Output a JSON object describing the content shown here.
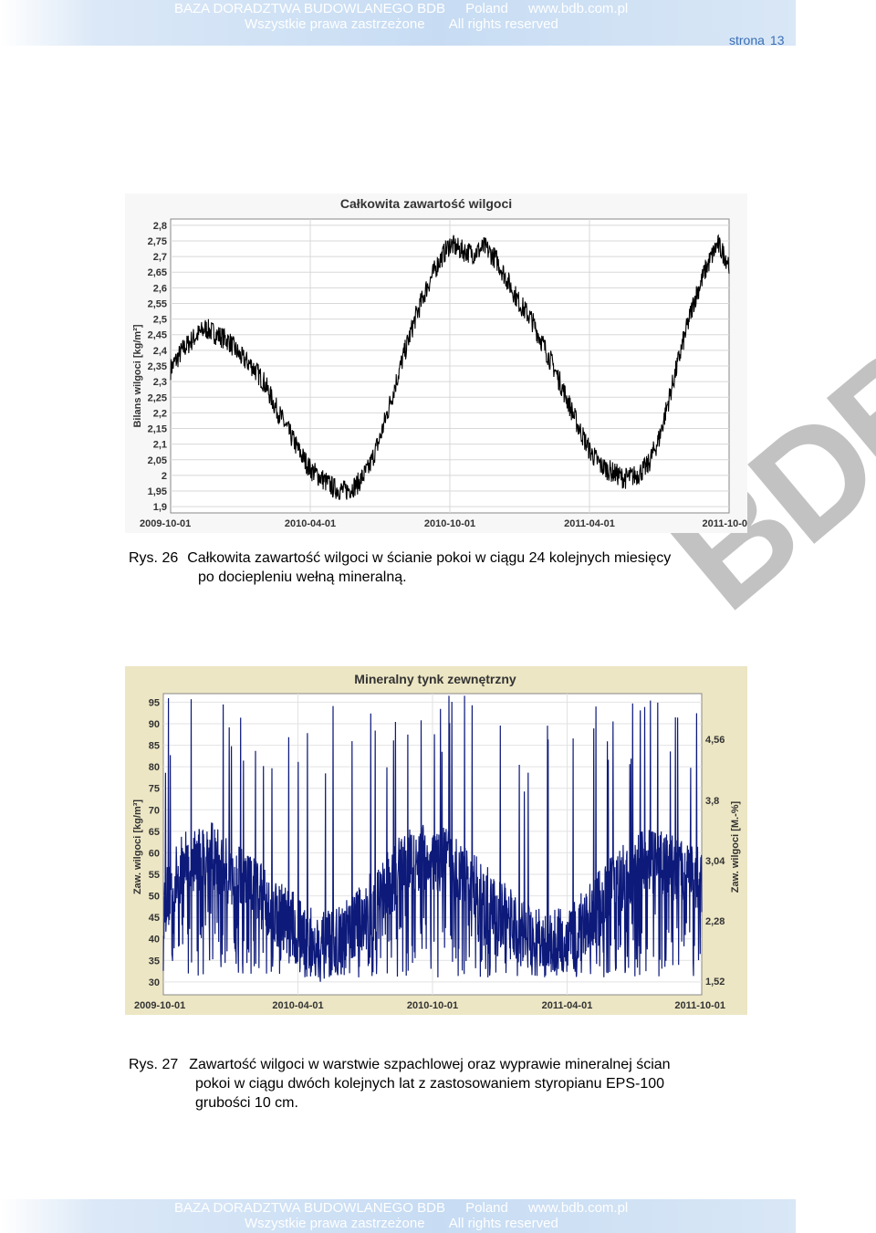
{
  "header": {
    "line1": [
      "BAZA DORADZTWA BUDOWLANEGO BDB",
      "Poland",
      "www.bdb.com.pl"
    ],
    "line2": [
      "Wszystkie prawa zastrzeżone",
      "All rights reserved"
    ],
    "page_label": "strona",
    "page_number": "13"
  },
  "footer": {
    "line1": [
      "BAZA DORADZTWA BUDOWLANEGO BDB",
      "Poland",
      "www.bdb.com.pl"
    ],
    "line2": [
      "Wszystkie prawa zastrzeżone",
      "All rights reserved"
    ]
  },
  "watermark": "BDB",
  "captions": [
    {
      "number": "Rys. 26",
      "line1": "Całkowita zawartość wilgoci w ścianie pokoi w ciągu 24 kolejnych miesięcy",
      "line2": "po dociepleniu wełną mineralną."
    },
    {
      "number": "Rys. 27",
      "line1": "Zawartość wilgoci w warstwie szpachlowej oraz wyprawie mineralnej ścian",
      "line2": "pokoi w ciągu dwóch kolejnych lat z zastosowaniem styropianu EPS-100",
      "line3": "grubości 10 cm."
    }
  ],
  "chart_data": [
    {
      "type": "line",
      "title": "Całkowita zawartość wilgoci",
      "ylabel": "Bilans wilgoci [kg/m²]",
      "xlabel": "",
      "yticks": [
        "2,8",
        "2,75",
        "2,7",
        "2,65",
        "2,6",
        "2,55",
        "2,5",
        "2,45",
        "2,4",
        "2,35",
        "2,3",
        "2,25",
        "2,2",
        "2,15",
        "2,1",
        "2,05",
        "2",
        "1,95",
        "1,9"
      ],
      "xticks": [
        "2009-10-01",
        "2010-04-01",
        "2010-10-01",
        "2011-04-01",
        "2011-10-0"
      ],
      "ylim": [
        1.88,
        2.82
      ],
      "grid": true,
      "color": "#000000",
      "x_months": [
        0,
        0.5,
        1,
        1.5,
        2,
        2.5,
        3,
        3.5,
        4,
        4.5,
        5,
        5.5,
        6,
        6.5,
        7,
        7.5,
        8,
        8.5,
        9,
        9.5,
        10,
        10.5,
        11,
        11.5,
        12,
        12.5,
        13,
        13.5,
        14,
        14.5,
        15,
        15.5,
        16,
        16.5,
        17,
        17.5,
        18,
        18.5,
        19,
        19.5,
        20,
        20.5,
        21,
        21.5,
        22,
        22.5,
        23,
        23.5,
        24
      ],
      "values": [
        2.34,
        2.4,
        2.44,
        2.47,
        2.45,
        2.43,
        2.38,
        2.35,
        2.3,
        2.22,
        2.15,
        2.08,
        2.02,
        1.99,
        1.96,
        1.95,
        1.97,
        2.02,
        2.12,
        2.25,
        2.38,
        2.5,
        2.6,
        2.68,
        2.74,
        2.72,
        2.71,
        2.73,
        2.69,
        2.62,
        2.55,
        2.5,
        2.42,
        2.34,
        2.25,
        2.16,
        2.08,
        2.03,
        2.01,
        1.99,
        2.0,
        2.03,
        2.12,
        2.27,
        2.42,
        2.56,
        2.66,
        2.74,
        2.68
      ]
    },
    {
      "type": "line",
      "title": "Mineralny tynk zewnętrzny",
      "ylabel": "Zaw. wilgoci [kg/m³]",
      "y2label": "Zaw. wilgoci [M.-%]",
      "xlabel": "",
      "yticks": [
        "95",
        "90",
        "85",
        "80",
        "75",
        "70",
        "65",
        "60",
        "55",
        "50",
        "45",
        "40",
        "35",
        "30"
      ],
      "y2ticks": [
        "4,56",
        "3,8",
        "3,04",
        "2,28",
        "1,52"
      ],
      "xticks": [
        "2009-10-01",
        "2010-04-01",
        "2010-10-01",
        "2011-04-01",
        "2011-10-01"
      ],
      "ylim": [
        27,
        97
      ],
      "grid": true,
      "color": "#0d1a7a",
      "x_months": [
        0,
        1,
        2,
        3,
        4,
        5,
        6,
        7,
        8,
        9,
        10,
        11,
        12,
        13,
        14,
        15,
        16,
        17,
        18,
        19,
        20,
        21,
        22,
        23,
        24
      ],
      "baseline": [
        48,
        58,
        60,
        55,
        52,
        47,
        42,
        38,
        40,
        46,
        53,
        58,
        59,
        57,
        51,
        46,
        42,
        38,
        40,
        45,
        52,
        57,
        58,
        56,
        54
      ],
      "spike_max": 97,
      "trough_min": 31
    }
  ]
}
